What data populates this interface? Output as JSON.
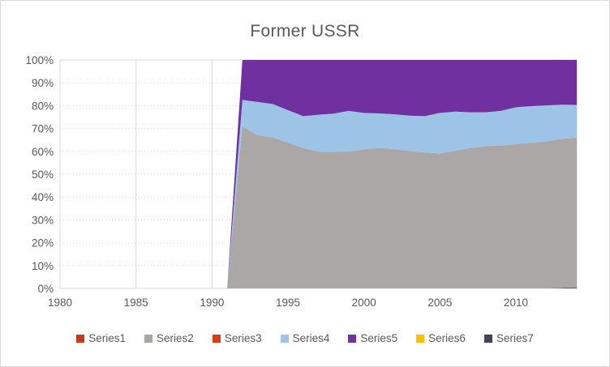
{
  "chart_data": {
    "type": "area",
    "stacking": "percent_stacked",
    "title": "Former USSR",
    "x_range": [
      1980,
      2014
    ],
    "x_ticks": [
      1980,
      1985,
      1990,
      1995,
      2000,
      2005,
      2010
    ],
    "y_tick_labels": [
      "0%",
      "10%",
      "20%",
      "30%",
      "40%",
      "50%",
      "60%",
      "70%",
      "80%",
      "90%",
      "100%"
    ],
    "axis_color": "#595959",
    "grid_color": "#D9D9D9",
    "legend_position": "bottom",
    "gridlines": true,
    "series": [
      {
        "name": "Series1",
        "color": "#C63C1B",
        "pattern": true,
        "values": [
          0,
          0,
          0,
          0,
          0,
          0,
          0,
          0,
          0,
          0,
          0,
          0,
          0,
          0,
          0,
          0,
          0,
          0,
          0,
          0,
          0,
          0,
          0,
          0,
          0,
          0,
          0,
          0,
          0,
          0,
          0,
          0,
          0,
          0.3,
          0.5
        ]
      },
      {
        "name": "Series2",
        "color": "#ABA7A7",
        "values": [
          0,
          0,
          0,
          0,
          0,
          0,
          0,
          0,
          0,
          0,
          0,
          0,
          71,
          67,
          66.2,
          63.8,
          61.5,
          59.9,
          59.7,
          59.9,
          60.9,
          61.5,
          60.9,
          60.2,
          59.5,
          59.1,
          60.3,
          61.5,
          62.3,
          62.6,
          63.2,
          63.7,
          64.4,
          65.1,
          65.6
        ]
      },
      {
        "name": "Series3",
        "color": "#DE3A12",
        "values": [
          0,
          0,
          0,
          0,
          0,
          0,
          0,
          0,
          0,
          0,
          0,
          0,
          0,
          0,
          0,
          0,
          0,
          0,
          0,
          0,
          0,
          0,
          0,
          0,
          0,
          0,
          0,
          0,
          0,
          0,
          0,
          0,
          0,
          0,
          0
        ]
      },
      {
        "name": "Series4",
        "color": "#9DC3E6",
        "values": [
          0,
          0,
          0,
          0,
          0,
          0,
          0,
          0,
          0,
          0,
          0,
          0,
          11.5,
          14.6,
          14.5,
          14.2,
          13.9,
          16.1,
          16.8,
          17.8,
          15.9,
          15.1,
          15.3,
          15.4,
          15.9,
          17.7,
          17.1,
          15.6,
          14.8,
          15.1,
          16.1,
          16.1,
          15.7,
          15,
          14.2
        ]
      },
      {
        "name": "Series5",
        "color": "#7030A0",
        "values": [
          0,
          0,
          0,
          0,
          0,
          0,
          0,
          0,
          0,
          0,
          0,
          0,
          17.5,
          18.4,
          19.3,
          22,
          24.6,
          24,
          23.5,
          22.3,
          23.2,
          23.4,
          23.8,
          24.4,
          24.6,
          23.2,
          22.6,
          22.9,
          22.9,
          22.3,
          20.7,
          20.2,
          19.9,
          19.6,
          19.7
        ]
      },
      {
        "name": "Series6",
        "color": "#FFC000",
        "values": [
          0,
          0,
          0,
          0,
          0,
          0,
          0,
          0,
          0,
          0,
          0,
          0,
          0,
          0,
          0,
          0,
          0,
          0,
          0,
          0,
          0,
          0,
          0,
          0,
          0,
          0,
          0,
          0,
          0,
          0,
          0,
          0,
          0,
          0,
          0
        ]
      },
      {
        "name": "Series7",
        "color": "#45415F",
        "pattern": true,
        "values": [
          0,
          0,
          0,
          0,
          0,
          0,
          0,
          0,
          0,
          0,
          0,
          0,
          0,
          0,
          0,
          0,
          0,
          0,
          0,
          0,
          0,
          0,
          0,
          0,
          0,
          0,
          0,
          0,
          0,
          0,
          0,
          0,
          0,
          0,
          0
        ]
      }
    ]
  }
}
